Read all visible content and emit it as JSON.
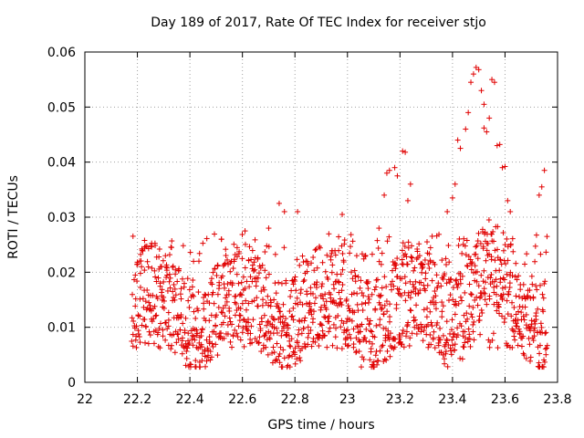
{
  "chart_data": {
    "type": "scatter",
    "title": "Day 189 of 2017, Rate Of TEC Index for receiver stjo",
    "xlabel": "GPS time / hours",
    "ylabel": "ROTI / TECUs",
    "xlim": [
      22,
      23.8
    ],
    "ylim": [
      0,
      0.06
    ],
    "x_ticks": [
      "22",
      "22.2",
      "22.4",
      "22.6",
      "22.8",
      "23",
      "23.2",
      "23.4",
      "23.6",
      "23.8"
    ],
    "y_ticks": [
      "0",
      "0.01",
      "0.02",
      "0.03",
      "0.04",
      "0.05",
      "0.06"
    ],
    "grid": true,
    "marker": "plus",
    "color": "#e00000",
    "x_start": 22.18,
    "x_end": 23.76,
    "outliers": [
      [
        23.14,
        0.034
      ],
      [
        23.15,
        0.038
      ],
      [
        23.16,
        0.0385
      ],
      [
        23.18,
        0.039
      ],
      [
        23.19,
        0.0375
      ],
      [
        23.21,
        0.042
      ],
      [
        23.22,
        0.0418
      ],
      [
        23.24,
        0.036
      ],
      [
        23.23,
        0.033
      ],
      [
        23.12,
        0.028
      ],
      [
        23.38,
        0.031
      ],
      [
        23.4,
        0.0335
      ],
      [
        23.41,
        0.036
      ],
      [
        23.42,
        0.044
      ],
      [
        23.43,
        0.0425
      ],
      [
        23.45,
        0.046
      ],
      [
        23.46,
        0.049
      ],
      [
        23.47,
        0.0545
      ],
      [
        23.48,
        0.056
      ],
      [
        23.49,
        0.0572
      ],
      [
        23.5,
        0.0568
      ],
      [
        23.51,
        0.053
      ],
      [
        23.52,
        0.0505
      ],
      [
        23.53,
        0.0455
      ],
      [
        23.54,
        0.048
      ],
      [
        23.55,
        0.055
      ],
      [
        23.56,
        0.0545
      ],
      [
        23.57,
        0.043
      ],
      [
        23.58,
        0.0432
      ],
      [
        23.59,
        0.039
      ],
      [
        23.6,
        0.0392
      ],
      [
        23.52,
        0.0462
      ],
      [
        23.61,
        0.033
      ],
      [
        23.62,
        0.031
      ],
      [
        23.73,
        0.034
      ],
      [
        23.74,
        0.0355
      ],
      [
        23.75,
        0.0385
      ],
      [
        22.74,
        0.0325
      ],
      [
        22.76,
        0.031
      ],
      [
        22.81,
        0.031
      ],
      [
        22.98,
        0.0305
      ],
      [
        22.7,
        0.028
      ],
      [
        22.61,
        0.0275
      ],
      [
        22.33,
        0.0245
      ],
      [
        22.52,
        0.026
      ]
    ]
  }
}
